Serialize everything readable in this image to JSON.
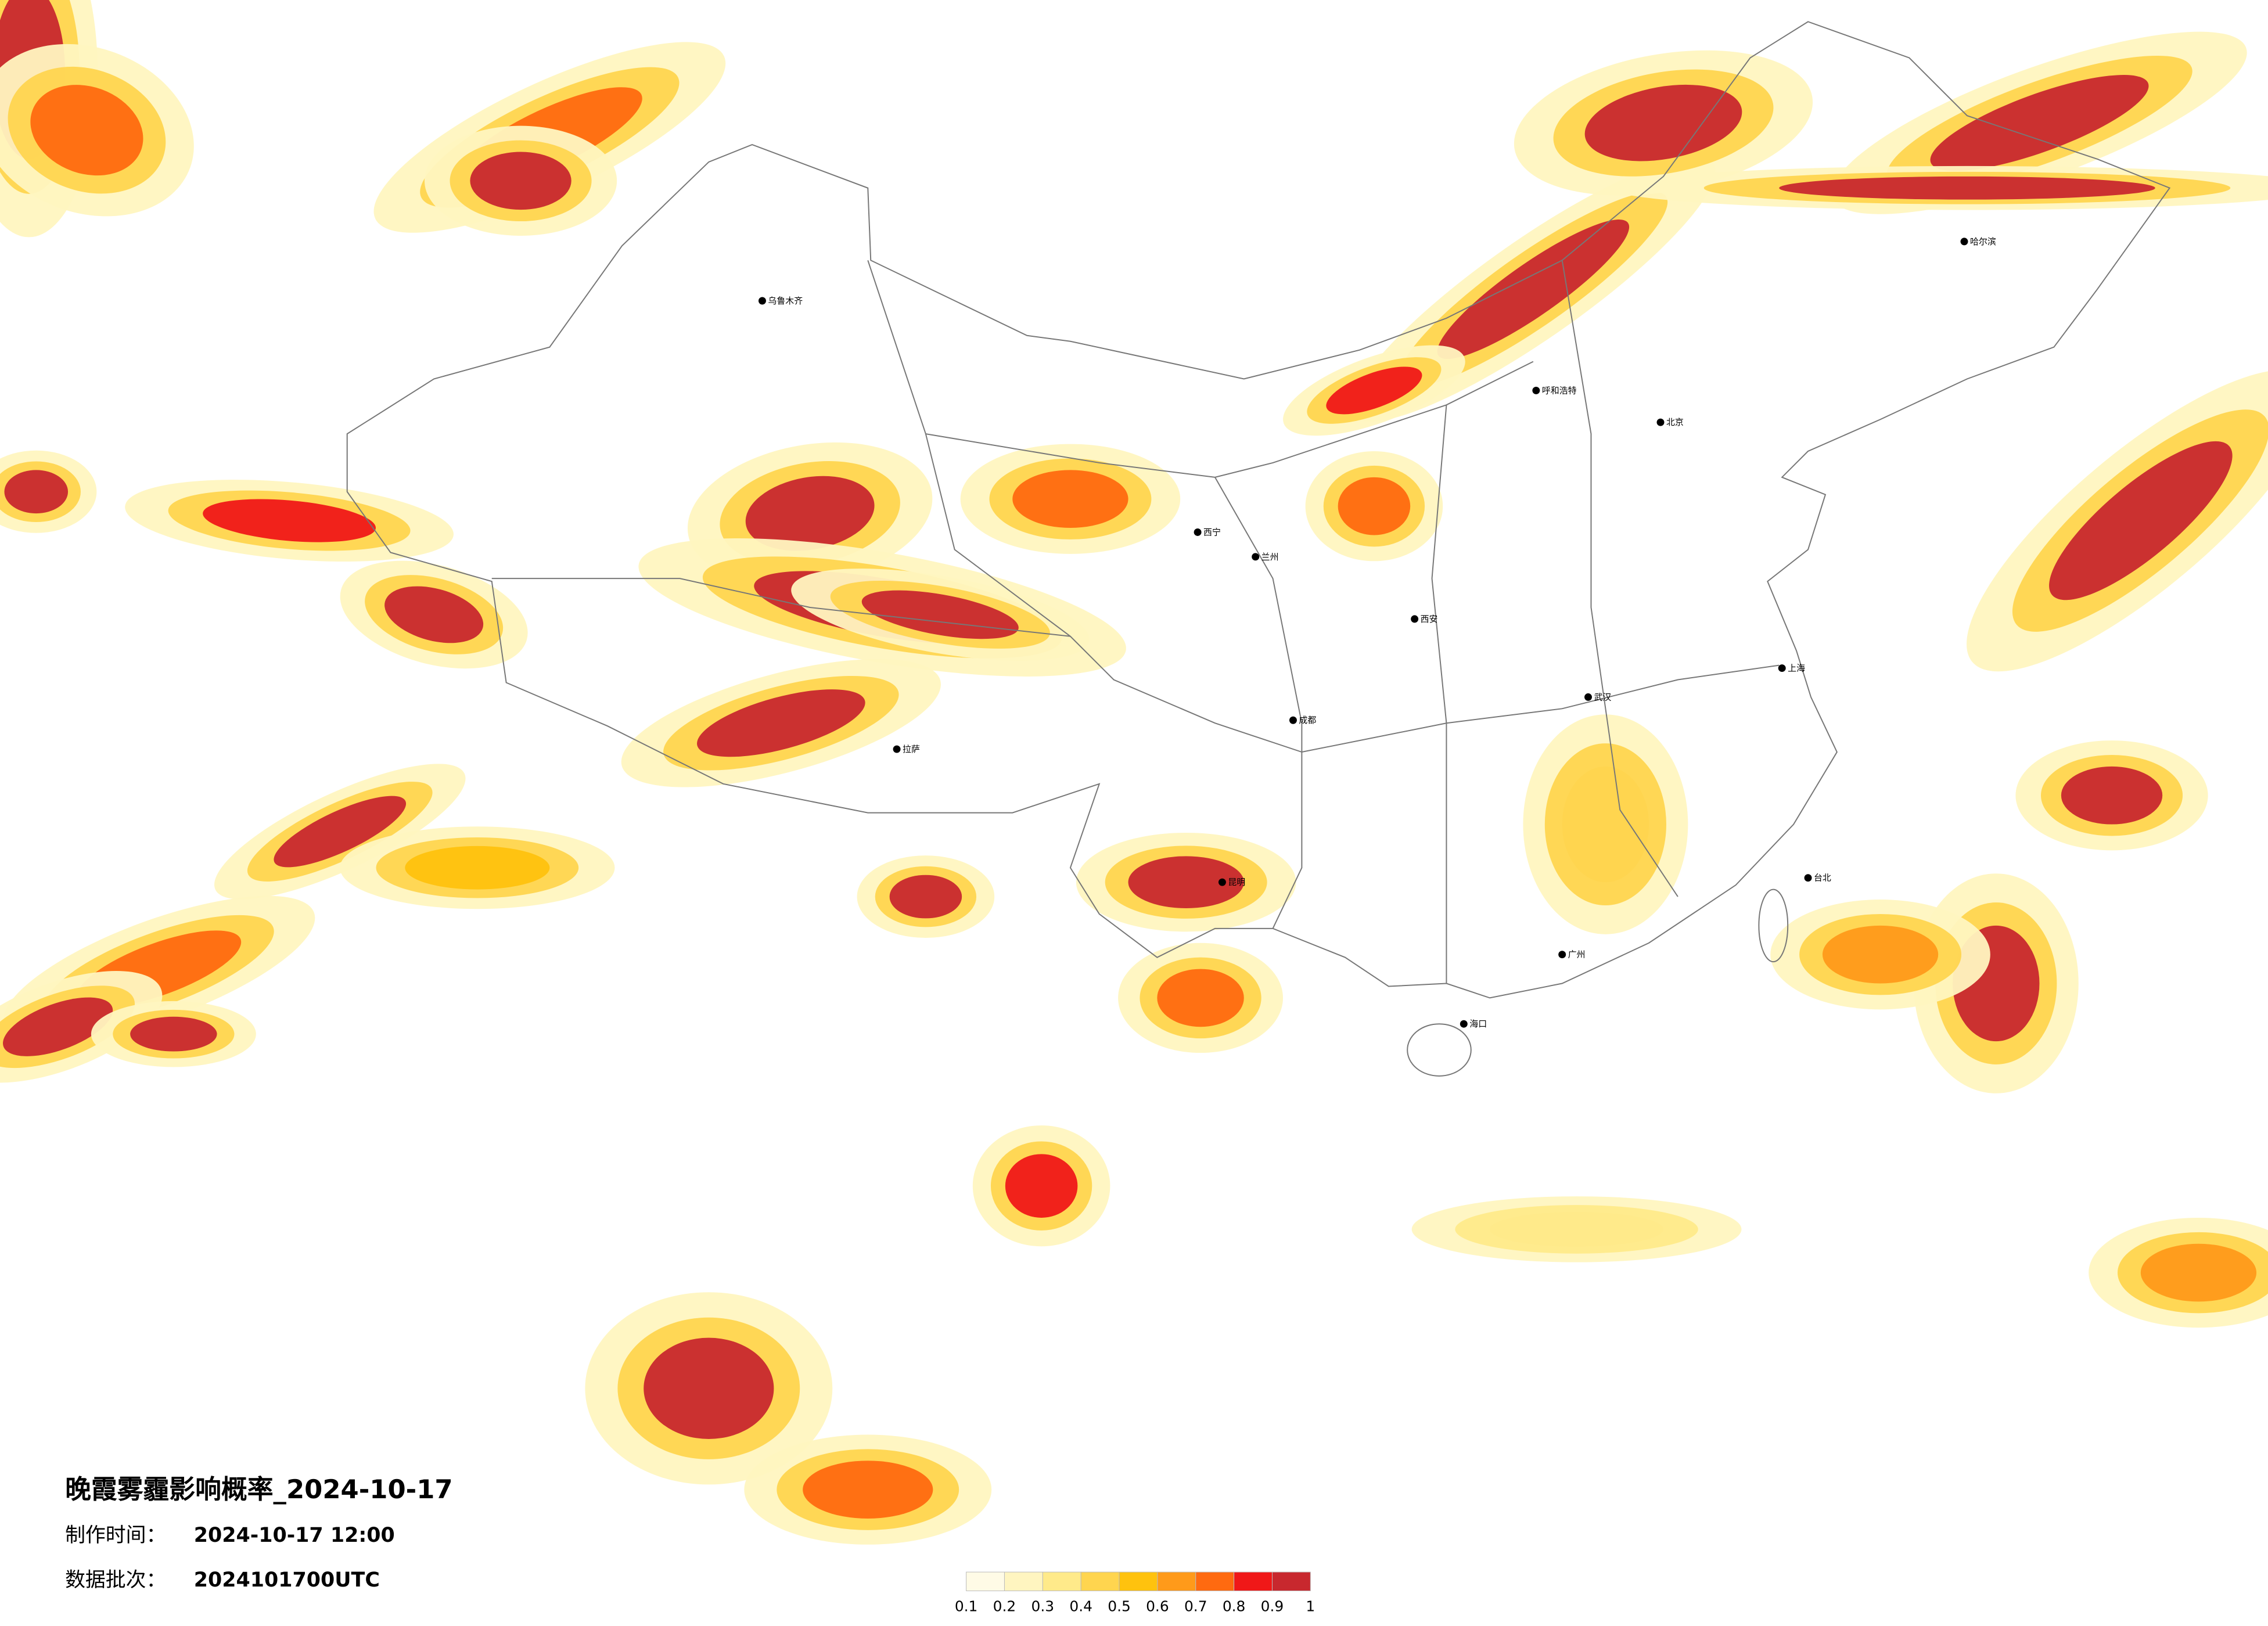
{
  "title": "晚霞雾霾影响概率_2024-10-17",
  "production": {
    "label": "制作时间：",
    "value": "2024-10-17 12:00"
  },
  "batch": {
    "label": "数据批次：",
    "value": "2024101700UTC"
  },
  "legend": {
    "ticks": [
      0.1,
      0.2,
      0.3,
      0.4,
      0.5,
      0.6,
      0.7,
      0.8,
      0.9,
      1
    ],
    "colors": [
      "#fffbe6",
      "#fff5c0",
      "#ffea8a",
      "#ffd54f",
      "#ffc20e",
      "#ff9a1a",
      "#ff6a10",
      "#f01818",
      "#c8282e"
    ]
  },
  "cities": [
    "乌鲁木齐",
    "拉萨",
    "西宁",
    "兰州",
    "呼和浩特",
    "北京",
    "哈尔滨",
    "成都",
    "西安",
    "武汉",
    "上海",
    "广州",
    "昆明",
    "海口",
    "台北"
  ]
}
